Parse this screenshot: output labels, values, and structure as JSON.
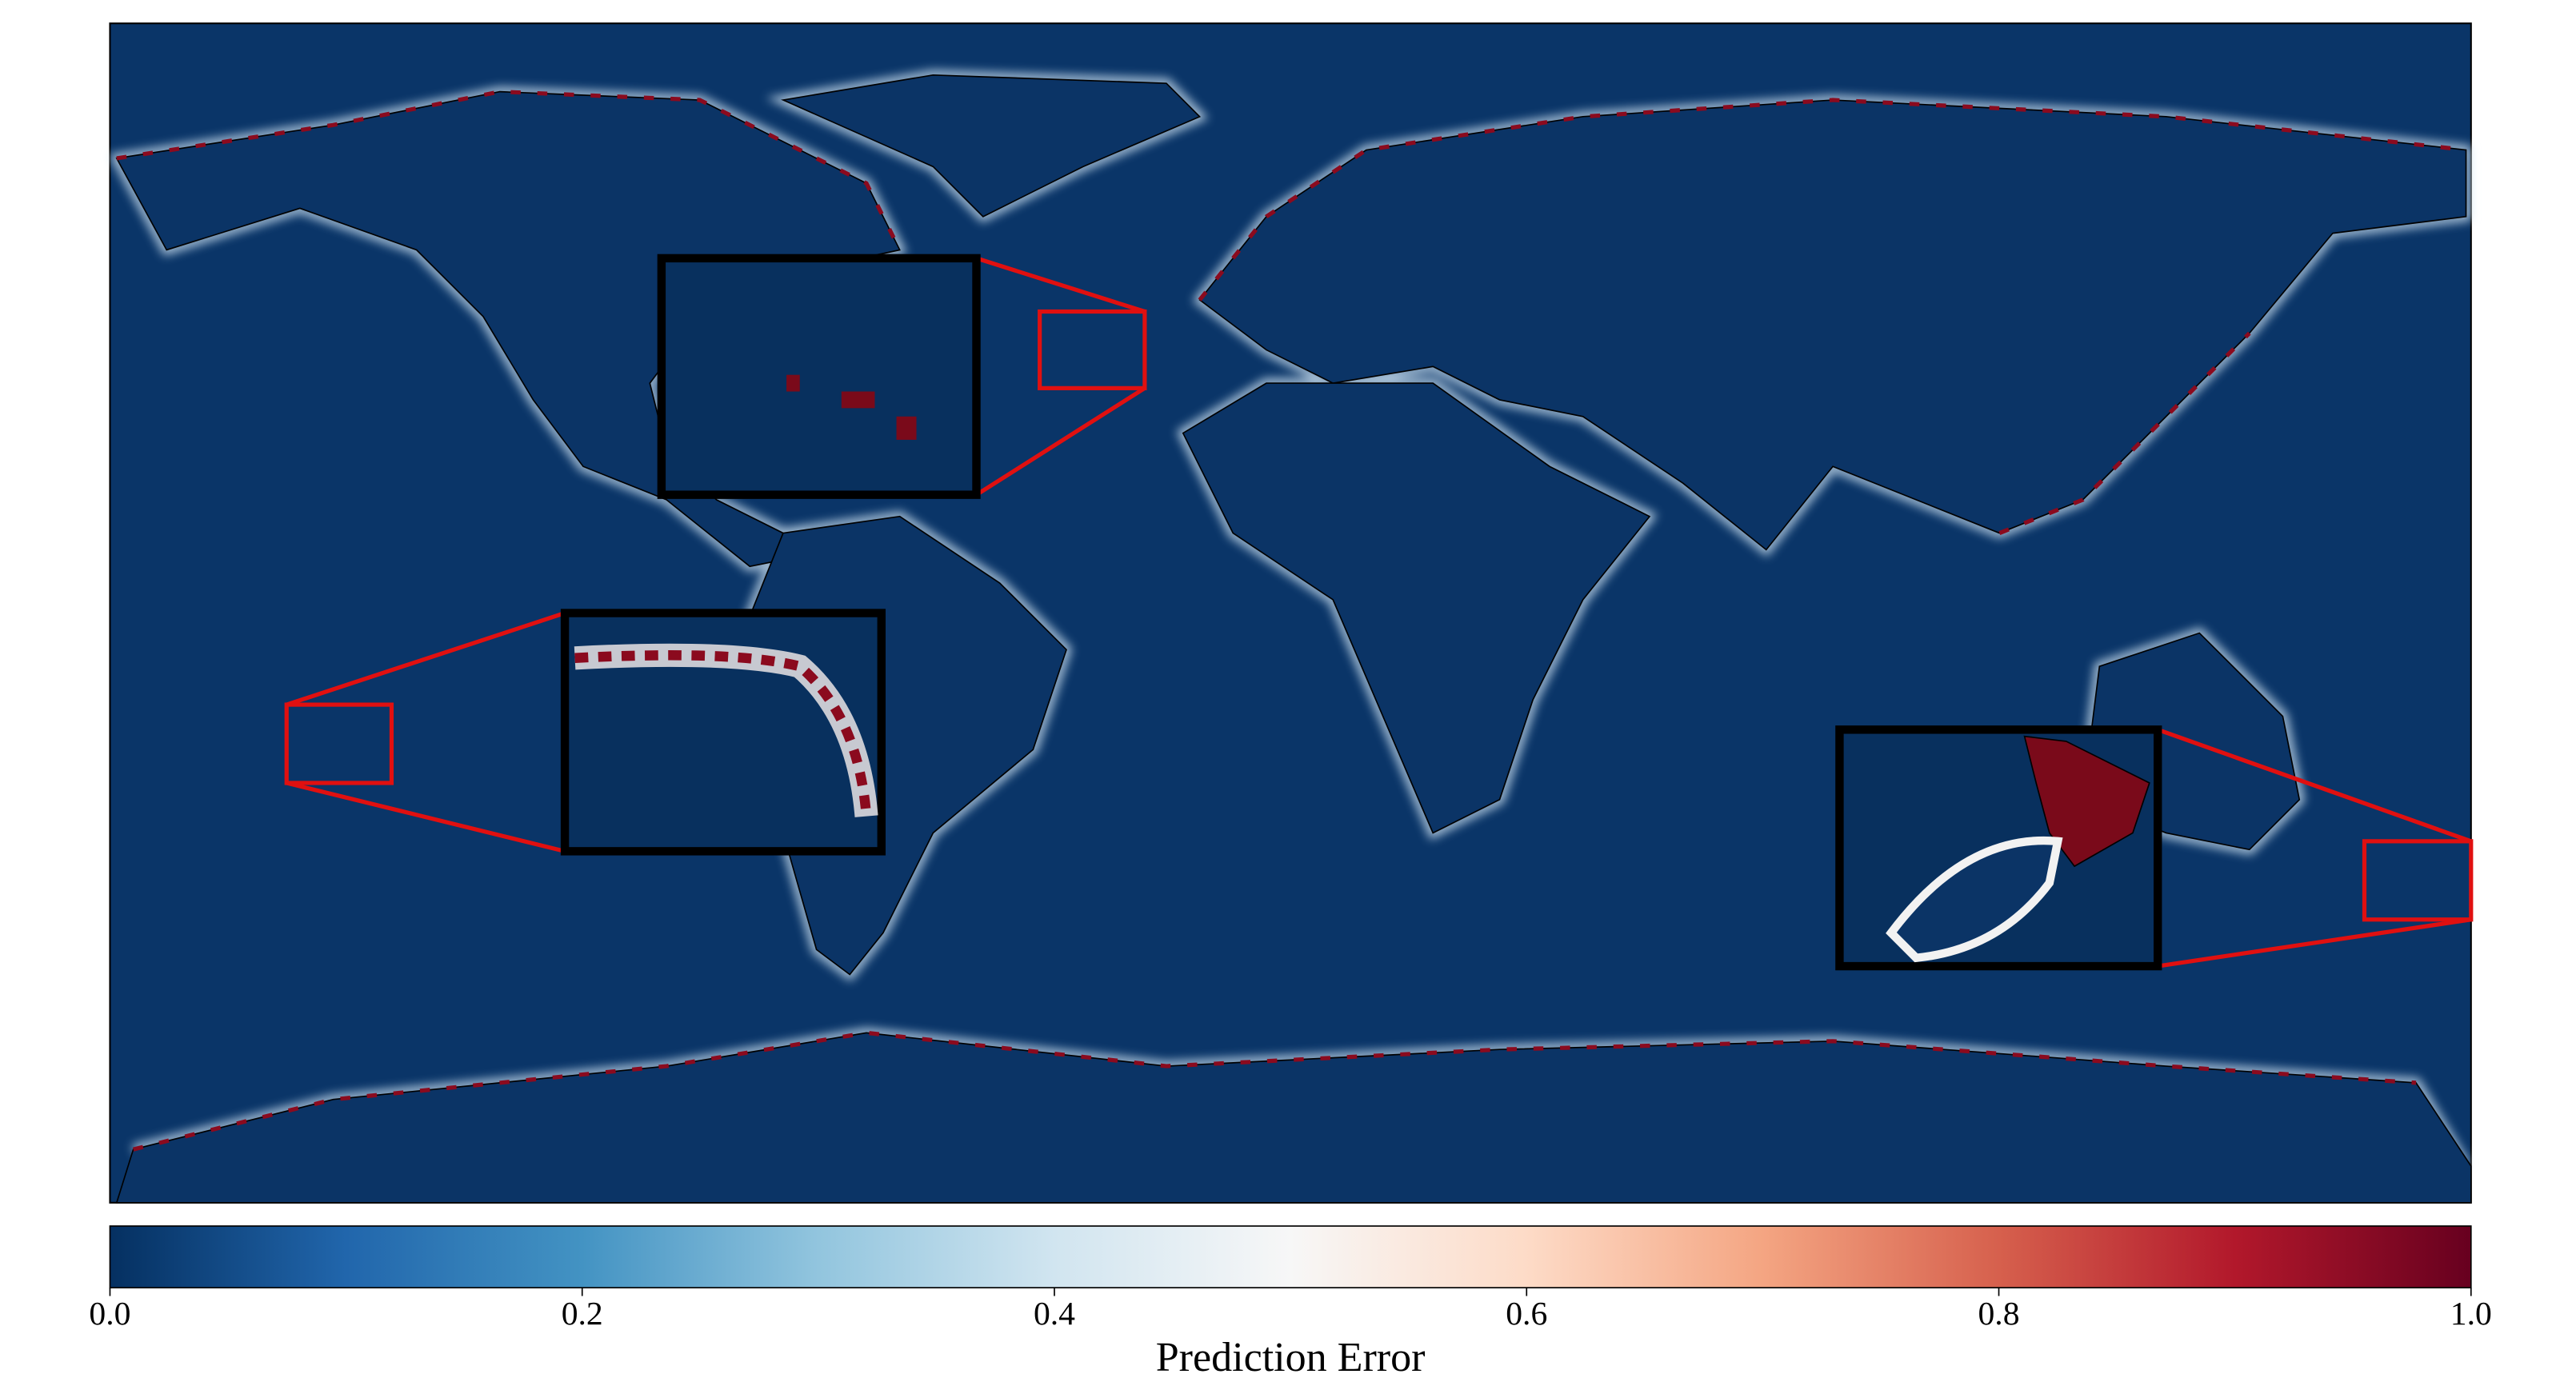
{
  "colorbar": {
    "label": "Prediction Error",
    "lim": [
      0,
      1
    ],
    "ticks": [
      {
        "value": 0,
        "label": "0.0"
      },
      {
        "value": 0.2,
        "label": "0.2"
      },
      {
        "value": 0.4,
        "label": "0.4"
      },
      {
        "value": 0.6,
        "label": "0.6"
      },
      {
        "value": 0.8,
        "label": "0.8"
      },
      {
        "value": 1,
        "label": "1.0"
      }
    ],
    "colormap": [
      "#053061",
      "#2166ac",
      "#4393c3",
      "#92c5de",
      "#d1e5f0",
      "#f7f7f7",
      "#fddbc7",
      "#f4a582",
      "#d6604d",
      "#b2182b",
      "#67001f"
    ]
  }
}
